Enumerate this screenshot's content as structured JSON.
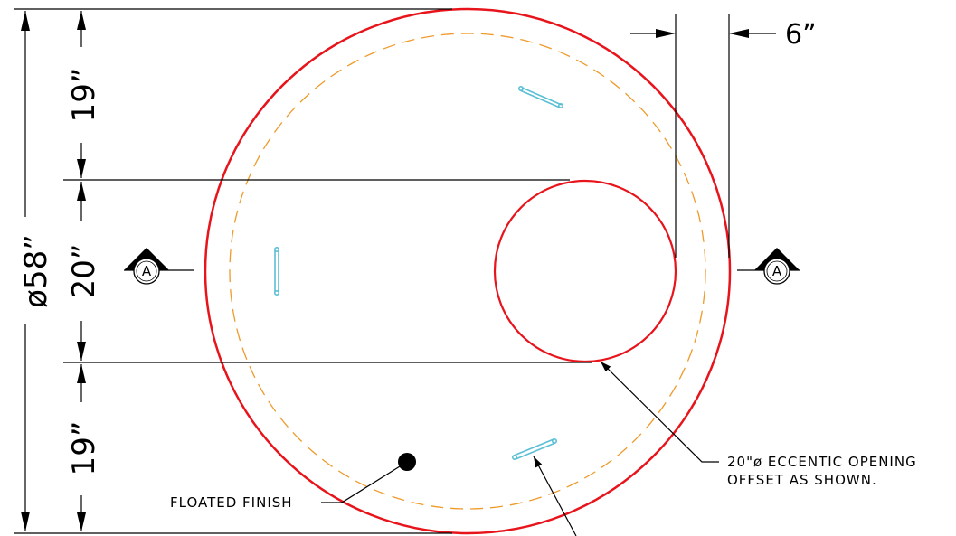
{
  "drawing": {
    "colors": {
      "outline": "#e8141b",
      "hidden_line": "#ef9a2a",
      "rebar": "#5bbfd6",
      "dimension": "#000000"
    },
    "dimensions": {
      "overall_diameter": "ø58”",
      "top_segment": "19”",
      "middle_segment": "20”",
      "bottom_segment": "19”",
      "offset": "6”"
    },
    "section_marks": {
      "left": "A",
      "right": "A"
    },
    "notes": {
      "opening_line1": "20\"ø ECCENTIC OPENING",
      "opening_line2": "OFFSET AS SHOWN.",
      "floated_finish": "FLOATED FINISH"
    }
  }
}
